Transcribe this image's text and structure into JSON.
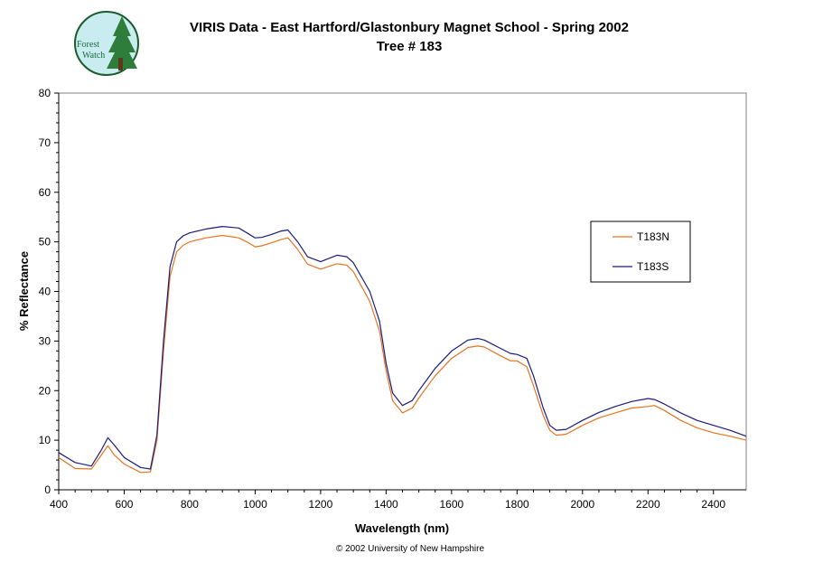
{
  "logo": {
    "line1": "Forest",
    "line2": "Watch"
  },
  "chart_data": {
    "type": "line",
    "title": "VIRIS Data - East Hartford/Glastonbury Magnet School - Spring 2002",
    "subtitle": "Tree # 183",
    "xlabel": "Wavelength (nm)",
    "ylabel": "% Reflectance",
    "xlim": [
      400,
      2500
    ],
    "ylim": [
      0,
      80
    ],
    "xticks": [
      400,
      600,
      800,
      1000,
      1200,
      1400,
      1600,
      1800,
      2000,
      2200,
      2400
    ],
    "yticks": [
      0,
      10,
      20,
      30,
      40,
      50,
      60,
      70,
      80
    ],
    "grid": false,
    "legend_position": "right",
    "x": [
      400,
      450,
      500,
      530,
      550,
      570,
      600,
      650,
      680,
      700,
      720,
      740,
      760,
      780,
      800,
      850,
      900,
      950,
      980,
      1000,
      1020,
      1050,
      1080,
      1100,
      1130,
      1160,
      1200,
      1250,
      1280,
      1300,
      1350,
      1380,
      1400,
      1420,
      1450,
      1480,
      1500,
      1550,
      1600,
      1650,
      1680,
      1700,
      1750,
      1780,
      1800,
      1830,
      1850,
      1880,
      1900,
      1920,
      1950,
      2000,
      2050,
      2100,
      2150,
      2200,
      2220,
      2250,
      2300,
      2350,
      2400,
      2450,
      2500
    ],
    "series": [
      {
        "name": "T183N",
        "color": "#e8731f",
        "values": [
          6.5,
          4.3,
          4.2,
          7.0,
          8.9,
          7.0,
          5.2,
          3.5,
          3.6,
          10.0,
          28.0,
          43.0,
          48.0,
          49.3,
          50.0,
          50.8,
          51.3,
          50.8,
          49.8,
          49.0,
          49.2,
          49.8,
          50.5,
          50.8,
          48.5,
          45.5,
          44.5,
          45.6,
          45.3,
          44.0,
          38.0,
          32.0,
          24.0,
          18.0,
          15.5,
          16.5,
          18.5,
          23.0,
          26.5,
          28.7,
          29.0,
          28.8,
          27.0,
          26.0,
          26.0,
          24.8,
          21.0,
          15.0,
          12.0,
          11.0,
          11.2,
          13.0,
          14.5,
          15.5,
          16.5,
          16.8,
          17.0,
          16.0,
          14.0,
          12.5,
          11.5,
          10.8,
          10.0
        ]
      },
      {
        "name": "T183S",
        "color": "#1a1a7a",
        "values": [
          7.5,
          5.5,
          4.8,
          8.0,
          10.5,
          9.0,
          6.5,
          4.5,
          4.2,
          11.0,
          30.0,
          45.0,
          50.0,
          51.2,
          51.8,
          52.6,
          53.1,
          52.8,
          51.6,
          50.8,
          50.9,
          51.5,
          52.2,
          52.4,
          50.0,
          47.0,
          46.0,
          47.3,
          47.0,
          45.8,
          40.0,
          34.0,
          25.5,
          19.5,
          17.0,
          18.0,
          20.0,
          24.5,
          28.0,
          30.2,
          30.5,
          30.2,
          28.5,
          27.5,
          27.3,
          26.5,
          23.0,
          16.5,
          13.0,
          12.0,
          12.2,
          14.0,
          15.6,
          16.8,
          17.8,
          18.4,
          18.2,
          17.3,
          15.5,
          14.0,
          13.0,
          12.0,
          10.8
        ]
      }
    ]
  },
  "footer": "© 2002 University of New Hampshire"
}
